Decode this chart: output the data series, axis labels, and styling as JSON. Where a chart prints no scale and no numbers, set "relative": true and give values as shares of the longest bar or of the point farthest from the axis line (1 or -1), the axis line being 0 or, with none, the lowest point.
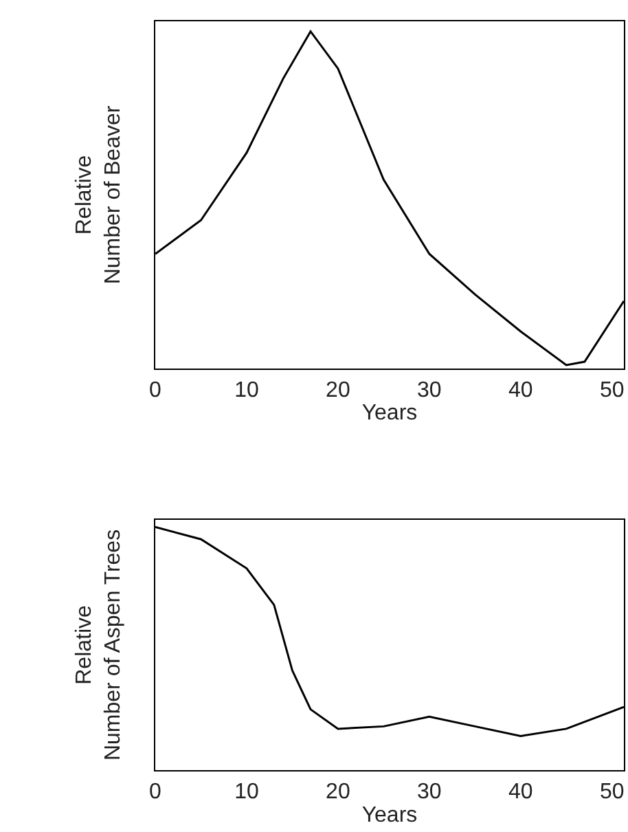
{
  "chart_data": [
    {
      "type": "line",
      "xlabel": "Years",
      "ylabel": "Relative\nNumber of Beaver",
      "relative": true,
      "tick_labels": "x",
      "xlim": [
        0,
        51.3
      ],
      "xticks": [
        0,
        10,
        20,
        30,
        40,
        50
      ],
      "x": [
        0,
        5,
        10,
        14,
        17,
        20,
        25,
        30,
        35,
        40,
        45,
        47,
        51.3
      ],
      "series": [
        {
          "color": "#000000",
          "values": [
            0.34,
            0.44,
            0.64,
            0.86,
            1.0,
            0.89,
            0.56,
            0.34,
            0.22,
            0.11,
            0.01,
            0.02,
            0.2
          ]
        }
      ]
    },
    {
      "type": "line",
      "xlabel": "Years",
      "ylabel": "Relative\nNumber of Aspen Trees",
      "relative": true,
      "tick_labels": "x",
      "xlim": [
        0,
        51.3
      ],
      "xticks": [
        0,
        10,
        20,
        30,
        40,
        50
      ],
      "x": [
        0,
        5,
        10,
        13,
        15,
        17,
        20,
        25,
        30,
        35,
        40,
        45,
        51.3
      ],
      "series": [
        {
          "color": "#000000",
          "values": [
            1.0,
            0.95,
            0.83,
            0.68,
            0.41,
            0.25,
            0.17,
            0.18,
            0.22,
            0.18,
            0.14,
            0.17,
            0.26
          ]
        }
      ]
    }
  ]
}
